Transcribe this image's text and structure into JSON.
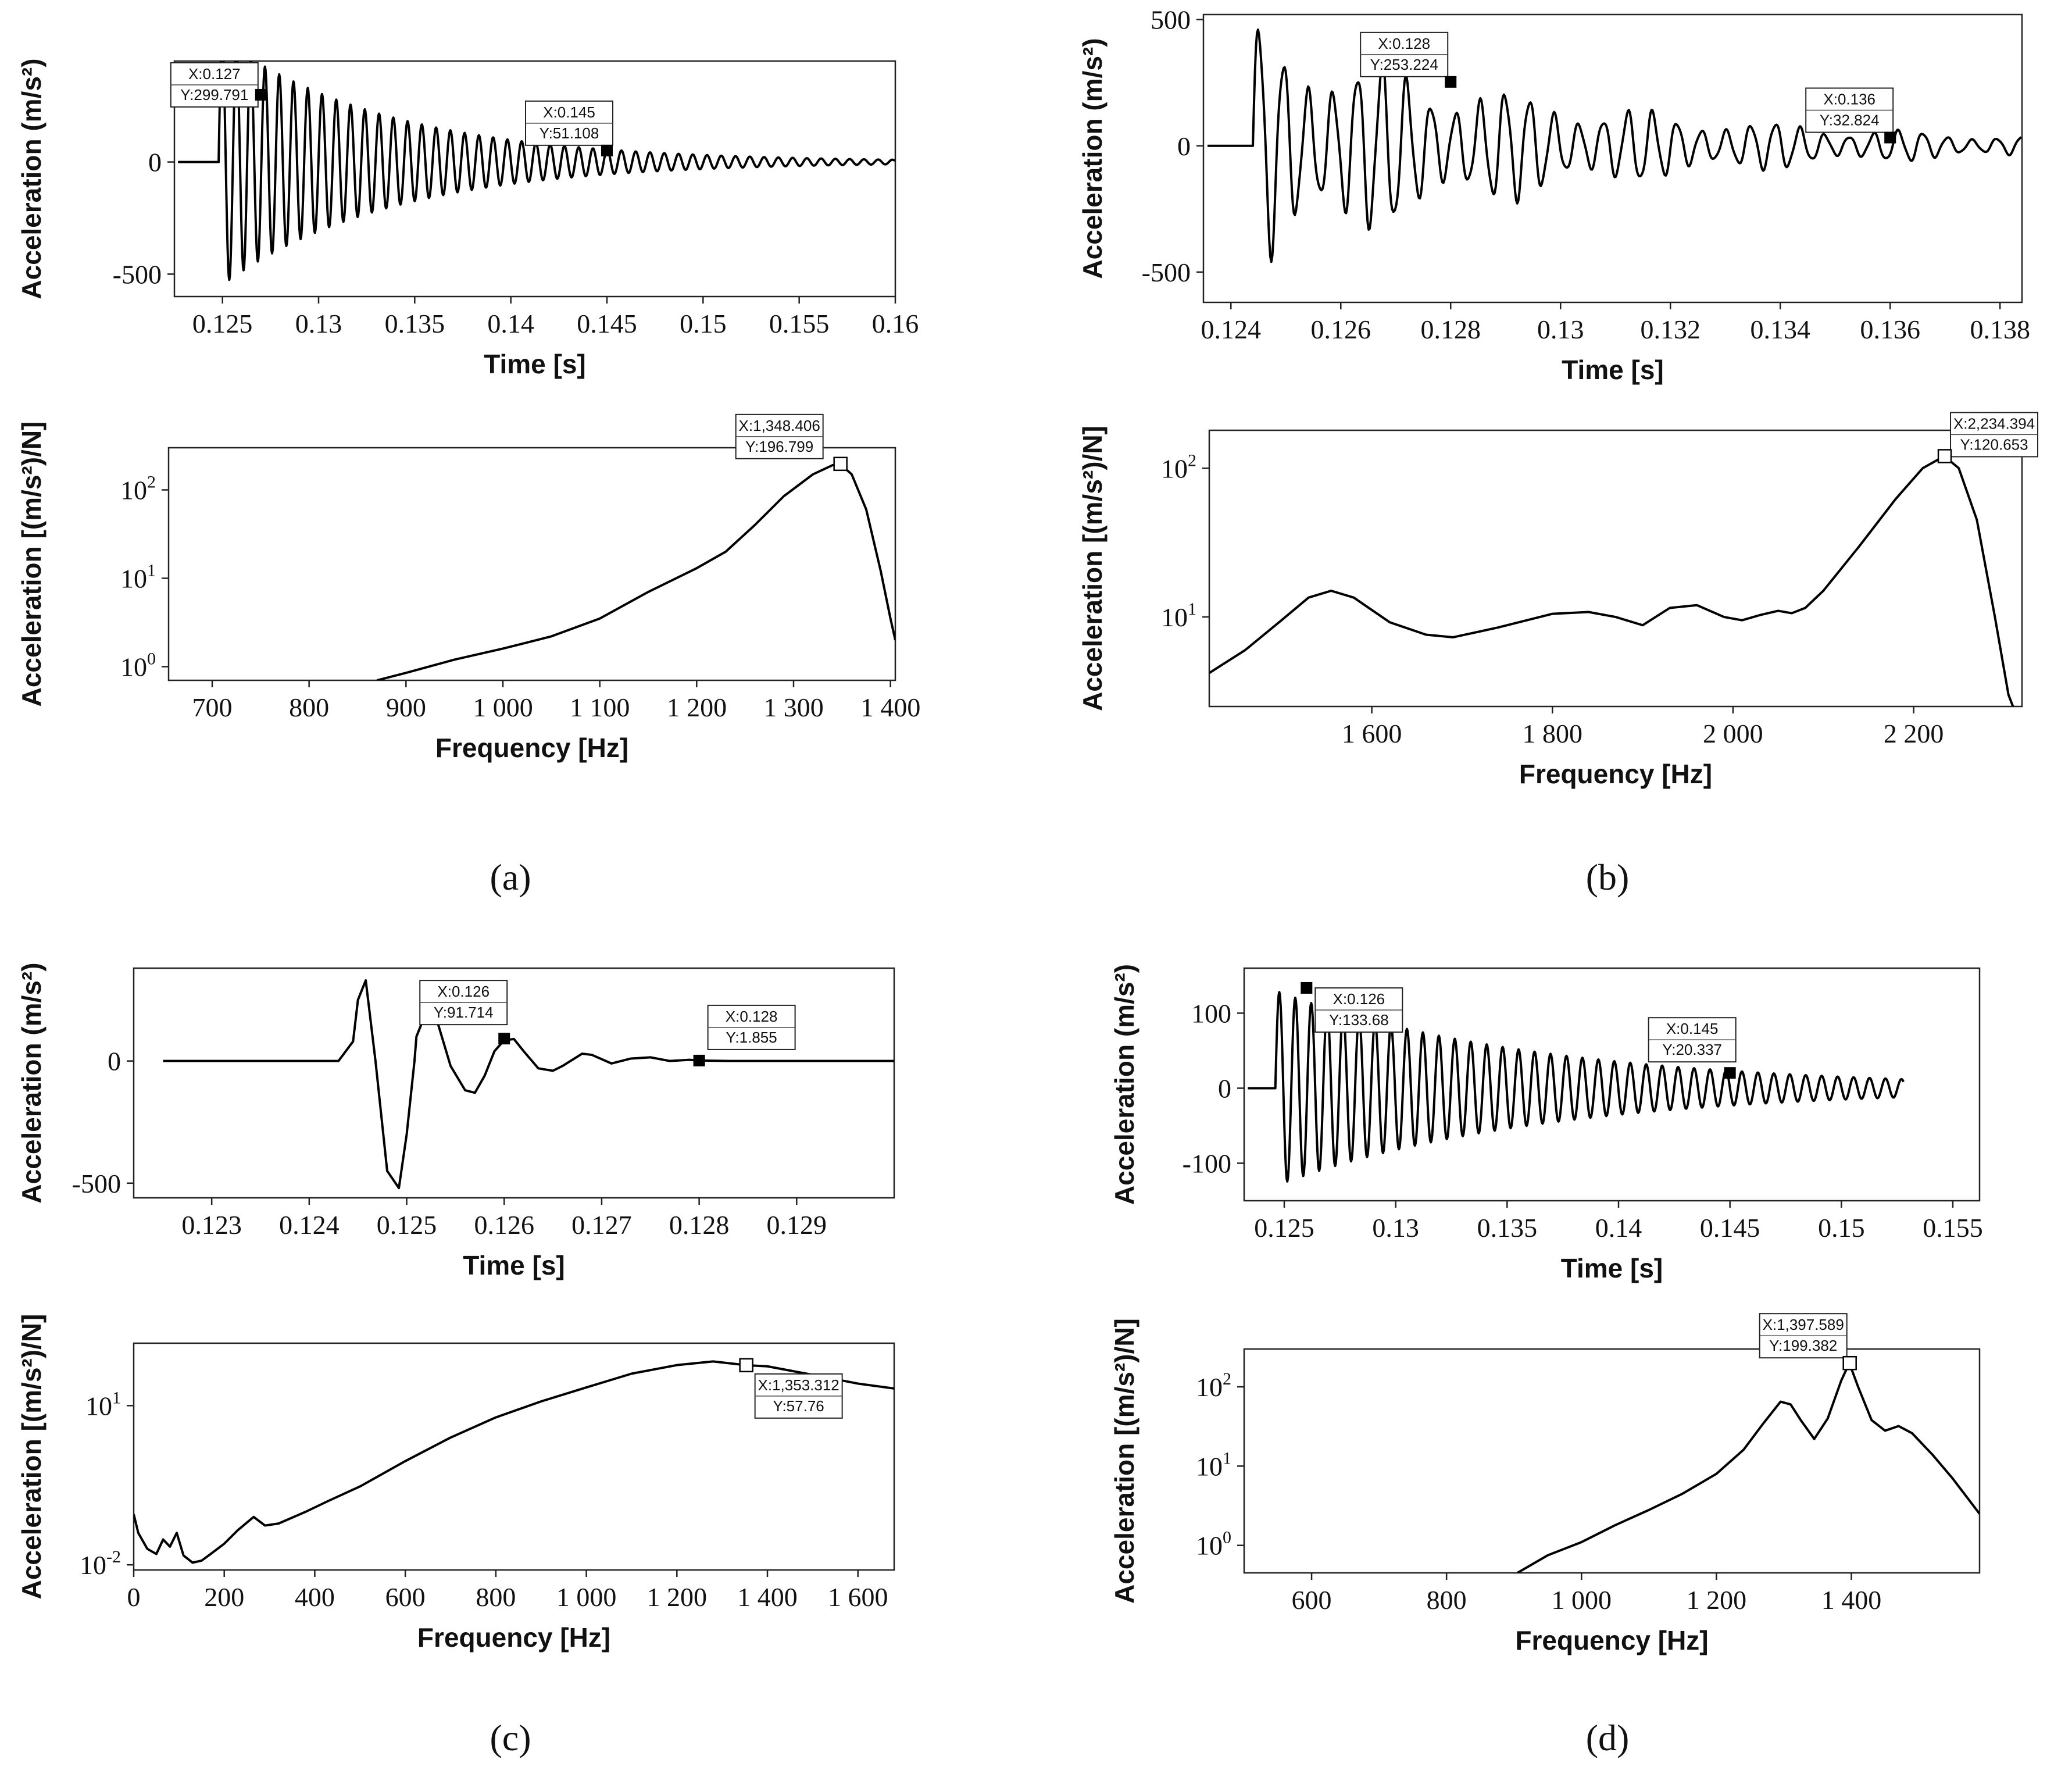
{
  "chart_data": [
    {
      "id": "a-time",
      "type": "line",
      "panel": "a",
      "xlabel": "Time [s]",
      "ylabel": "Acceleration (m/s²)",
      "xlim": [
        0.1225,
        0.16
      ],
      "ylim": [
        -600,
        450
      ],
      "yscale": "linear",
      "xticks": [
        0.125,
        0.13,
        0.135,
        0.14,
        0.145,
        0.15,
        0.155,
        0.16
      ],
      "xtick_labels": [
        "0.125",
        "0.13",
        "0.135",
        "0.14",
        "0.145",
        "0.15",
        "0.155",
        "0.16"
      ],
      "yticks": [
        0,
        -500
      ],
      "ytick_labels": [
        "0",
        "-500"
      ],
      "signal": {
        "kind": "decay",
        "t0": 0.1248,
        "end": 0.16,
        "f": 1348,
        "amp": 560,
        "decay_to": 10,
        "tail": 0.16
      },
      "annotations": [
        {
          "x": 0.127,
          "y": 299.791,
          "lines": [
            "X:0.127",
            "Y:299.791"
          ],
          "marker": "filled"
        },
        {
          "x": 0.145,
          "y": 51.108,
          "lines": [
            "X:0.145",
            "Y:51.108"
          ],
          "marker": "filled"
        }
      ]
    },
    {
      "id": "a-freq",
      "type": "line",
      "panel": "a",
      "xlabel": "Frequency [Hz]",
      "ylabel": "Acceleration [(m/s²)/N]",
      "xlim": [
        655,
        1405
      ],
      "ylim": [
        0.7,
        300
      ],
      "yscale": "log",
      "xticks": [
        700,
        800,
        900,
        1000,
        1100,
        1200,
        1300,
        1400
      ],
      "xtick_labels": [
        "700",
        "800",
        "900",
        "1 000",
        "1 100",
        "1 200",
        "1 300",
        "1 400"
      ],
      "yticks": [
        1,
        10,
        100
      ],
      "ytick_labels": [
        {
          "base": "10",
          "exp": "0"
        },
        {
          "base": "10",
          "exp": "1"
        },
        {
          "base": "10",
          "exp": "2"
        }
      ],
      "x": [
        870,
        900,
        950,
        1000,
        1050,
        1100,
        1150,
        1200,
        1230,
        1260,
        1290,
        1320,
        1340,
        1348,
        1360,
        1375,
        1390,
        1400,
        1405
      ],
      "y": [
        0.7,
        0.85,
        1.2,
        1.6,
        2.2,
        3.5,
        7,
        13,
        20,
        40,
        85,
        150,
        190,
        196.8,
        150,
        60,
        12,
        3.5,
        2
      ],
      "annotations": [
        {
          "x": 1348.406,
          "y": 196.799,
          "lines": [
            "X:1,348.406",
            "Y:196.799"
          ],
          "marker": "open"
        }
      ]
    },
    {
      "id": "b-time",
      "type": "line",
      "panel": "b",
      "xlabel": "Time [s]",
      "ylabel": "Acceleration (m/s²)",
      "xlim": [
        0.1235,
        0.1384
      ],
      "ylim": [
        -620,
        520
      ],
      "yscale": "linear",
      "xticks": [
        0.124,
        0.126,
        0.128,
        0.13,
        0.132,
        0.134,
        0.136,
        0.138
      ],
      "xtick_labels": [
        "0.124",
        "0.126",
        "0.128",
        "0.13",
        "0.132",
        "0.134",
        "0.136",
        "0.138"
      ],
      "yticks": [
        500,
        0,
        -500
      ],
      "ytick_labels": [
        "500",
        "0",
        "-500"
      ],
      "signal": {
        "kind": "beat",
        "t0": 0.1244,
        "end": 0.1384,
        "f": 2234,
        "amp": 480,
        "decay_to": 40,
        "tail": 0.1384
      },
      "annotations": [
        {
          "x": 0.128,
          "y": 253.224,
          "lines": [
            "X:0.128",
            "Y:253.224"
          ],
          "marker": "filled"
        },
        {
          "x": 0.136,
          "y": 32.824,
          "lines": [
            "X:0.136",
            "Y:32.824"
          ],
          "marker": "filled"
        }
      ]
    },
    {
      "id": "b-freq",
      "type": "line",
      "panel": "b",
      "xlabel": "Frequency [Hz]",
      "ylabel": "Acceleration [(m/s²)/N]",
      "xlim": [
        1420,
        2320
      ],
      "ylim": [
        2.5,
        180
      ],
      "yscale": "log",
      "xticks": [
        1600,
        1800,
        2000,
        2200
      ],
      "xtick_labels": [
        "1 600",
        "1 800",
        "2 000",
        "2 200"
      ],
      "yticks": [
        10,
        100
      ],
      "ytick_labels": [
        {
          "base": "10",
          "exp": "1"
        },
        {
          "base": "10",
          "exp": "2"
        }
      ],
      "x": [
        1420,
        1460,
        1500,
        1530,
        1555,
        1580,
        1620,
        1660,
        1690,
        1740,
        1800,
        1840,
        1870,
        1900,
        1930,
        1960,
        1990,
        2010,
        2030,
        2050,
        2065,
        2080,
        2100,
        2140,
        2180,
        2210,
        2234,
        2250,
        2270,
        2290,
        2305,
        2310
      ],
      "y": [
        4.2,
        6,
        9.5,
        13.5,
        15,
        13.5,
        9.2,
        7.6,
        7.3,
        8.5,
        10.5,
        10.8,
        10,
        8.8,
        11.5,
        12,
        10,
        9.5,
        10.3,
        11,
        10.6,
        11.5,
        15,
        30,
        62,
        100,
        120.7,
        100,
        45,
        10,
        3,
        2.5
      ],
      "annotations": [
        {
          "x": 2234.394,
          "y": 120.653,
          "lines": [
            "X:2,234.394",
            "Y:120.653"
          ],
          "marker": "open"
        }
      ]
    },
    {
      "id": "c-time",
      "type": "line",
      "panel": "c",
      "xlabel": "Time [s]",
      "ylabel": "Acceleration (m/s²)",
      "xlim": [
        0.1222,
        0.13
      ],
      "ylim": [
        -560,
        380
      ],
      "yscale": "linear",
      "xticks": [
        0.123,
        0.124,
        0.125,
        0.126,
        0.127,
        0.128,
        0.129
      ],
      "xtick_labels": [
        "0.123",
        "0.124",
        "0.125",
        "0.126",
        "0.127",
        "0.128",
        "0.129"
      ],
      "yticks": [
        0,
        -500
      ],
      "ytick_labels": [
        "0",
        "-500"
      ],
      "x": [
        0.1225,
        0.1243,
        0.12445,
        0.1245,
        0.12458,
        0.12468,
        0.1248,
        0.12492,
        0.125,
        0.12508,
        0.1251,
        0.1252,
        0.1253,
        0.12545,
        0.1256,
        0.1257,
        0.1258,
        0.1259,
        0.126,
        0.1261,
        0.1262,
        0.12635,
        0.1265,
        0.1266,
        0.1268,
        0.1269,
        0.1271,
        0.1273,
        0.1275,
        0.1277,
        0.1279,
        0.128,
        0.1283,
        0.13
      ],
      "y": [
        0,
        0,
        80,
        250,
        330,
        0,
        -450,
        -520,
        -300,
        0,
        100,
        200,
        180,
        -20,
        -120,
        -130,
        -60,
        40,
        85,
        90,
        40,
        -30,
        -40,
        -20,
        30,
        25,
        -10,
        10,
        15,
        0,
        5,
        1.855,
        0,
        0
      ],
      "annotations": [
        {
          "x": 0.126,
          "y": 91.714,
          "lines": [
            "X:0.126",
            "Y:91.714"
          ],
          "marker": "filled"
        },
        {
          "x": 0.128,
          "y": 1.855,
          "lines": [
            "X:0.128",
            "Y:1.855"
          ],
          "marker": "filled"
        }
      ]
    },
    {
      "id": "c-freq",
      "type": "line",
      "panel": "c",
      "xlabel": "Frequency [Hz]",
      "ylabel": "Acceleration [(m/s²)/N]",
      "xlim": [
        0,
        1680
      ],
      "ylim": [
        0.008,
        150
      ],
      "yscale": "log",
      "xticks": [
        0,
        200,
        400,
        600,
        800,
        1000,
        1200,
        1400,
        1600
      ],
      "xtick_labels": [
        "0",
        "200",
        "400",
        "600",
        "800",
        "1 000",
        "1 200",
        "1 400",
        "1 600"
      ],
      "yticks": [
        0.01,
        10
      ],
      "ytick_labels": [
        {
          "base": "10",
          "exp": "-2"
        },
        {
          "base": "10",
          "exp": "1"
        }
      ],
      "x": [
        0,
        10,
        30,
        50,
        65,
        80,
        95,
        110,
        130,
        150,
        170,
        200,
        230,
        265,
        290,
        320,
        380,
        430,
        500,
        600,
        700,
        800,
        900,
        1000,
        1100,
        1200,
        1280,
        1353,
        1400,
        1500,
        1600,
        1680
      ],
      "y": [
        0.09,
        0.04,
        0.02,
        0.016,
        0.03,
        0.022,
        0.04,
        0.015,
        0.011,
        0.012,
        0.016,
        0.025,
        0.045,
        0.08,
        0.055,
        0.06,
        0.1,
        0.16,
        0.3,
        0.9,
        2.5,
        6,
        12,
        22,
        40,
        58,
        68,
        57.76,
        55,
        38,
        26,
        21
      ],
      "annotations": [
        {
          "x": 1353.312,
          "y": 57.76,
          "lines": [
            "X:1,353.312",
            "Y:57.76"
          ],
          "marker": "open"
        }
      ]
    },
    {
      "id": "d-time",
      "type": "line",
      "panel": "d",
      "xlabel": "Time [s]",
      "ylabel": "Acceleration (m/s²)",
      "xlim": [
        0.1232,
        0.1562
      ],
      "ylim": [
        -150,
        160
      ],
      "yscale": "linear",
      "xticks": [
        0.125,
        0.13,
        0.135,
        0.14,
        0.145,
        0.15,
        0.155
      ],
      "xtick_labels": [
        "0.125",
        "0.13",
        "0.135",
        "0.14",
        "0.145",
        "0.15",
        "0.155"
      ],
      "yticks": [
        100,
        0,
        -100
      ],
      "ytick_labels": [
        "100",
        "0",
        "-100"
      ],
      "signal": {
        "kind": "decay2",
        "t0": 0.1246,
        "end": 0.1528,
        "f": 1397,
        "amp": 130,
        "decay_to": 12,
        "tail": 0.1528
      },
      "annotations": [
        {
          "x": 0.126,
          "y": 133.68,
          "lines": [
            "X:0.126",
            "Y:133.68"
          ],
          "marker": "filled"
        },
        {
          "x": 0.145,
          "y": 20.337,
          "lines": [
            "X:0.145",
            "Y:20.337"
          ],
          "marker": "filled"
        }
      ]
    },
    {
      "id": "d-freq",
      "type": "line",
      "panel": "d",
      "xlabel": "Frequency [Hz]",
      "ylabel": "Acceleration [(m/s²)/N]",
      "xlim": [
        500,
        1590
      ],
      "ylim": [
        0.45,
        300
      ],
      "yscale": "log",
      "xticks": [
        600,
        800,
        1000,
        1200,
        1400
      ],
      "xtick_labels": [
        "600",
        "800",
        "1 000",
        "1 200",
        "1 400"
      ],
      "yticks": [
        1,
        10,
        100
      ],
      "ytick_labels": [
        {
          "base": "10",
          "exp": "0"
        },
        {
          "base": "10",
          "exp": "1"
        },
        {
          "base": "10",
          "exp": "2"
        }
      ],
      "x": [
        905,
        950,
        1000,
        1050,
        1100,
        1150,
        1200,
        1240,
        1270,
        1295,
        1310,
        1325,
        1345,
        1365,
        1385,
        1397,
        1410,
        1430,
        1450,
        1470,
        1490,
        1520,
        1550,
        1590
      ],
      "y": [
        0.45,
        0.75,
        1.1,
        1.8,
        2.8,
        4.5,
        8,
        16,
        35,
        65,
        60,
        38,
        22,
        40,
        120,
        199.4,
        100,
        38,
        28,
        32,
        26,
        14,
        7,
        2.5
      ],
      "annotations": [
        {
          "x": 1397.589,
          "y": 199.382,
          "lines": [
            "X:1,397.589",
            "Y:199.382"
          ],
          "marker": "open"
        }
      ]
    }
  ],
  "panel_labels": [
    "(a)",
    "(b)",
    "(c)",
    "(d)"
  ]
}
